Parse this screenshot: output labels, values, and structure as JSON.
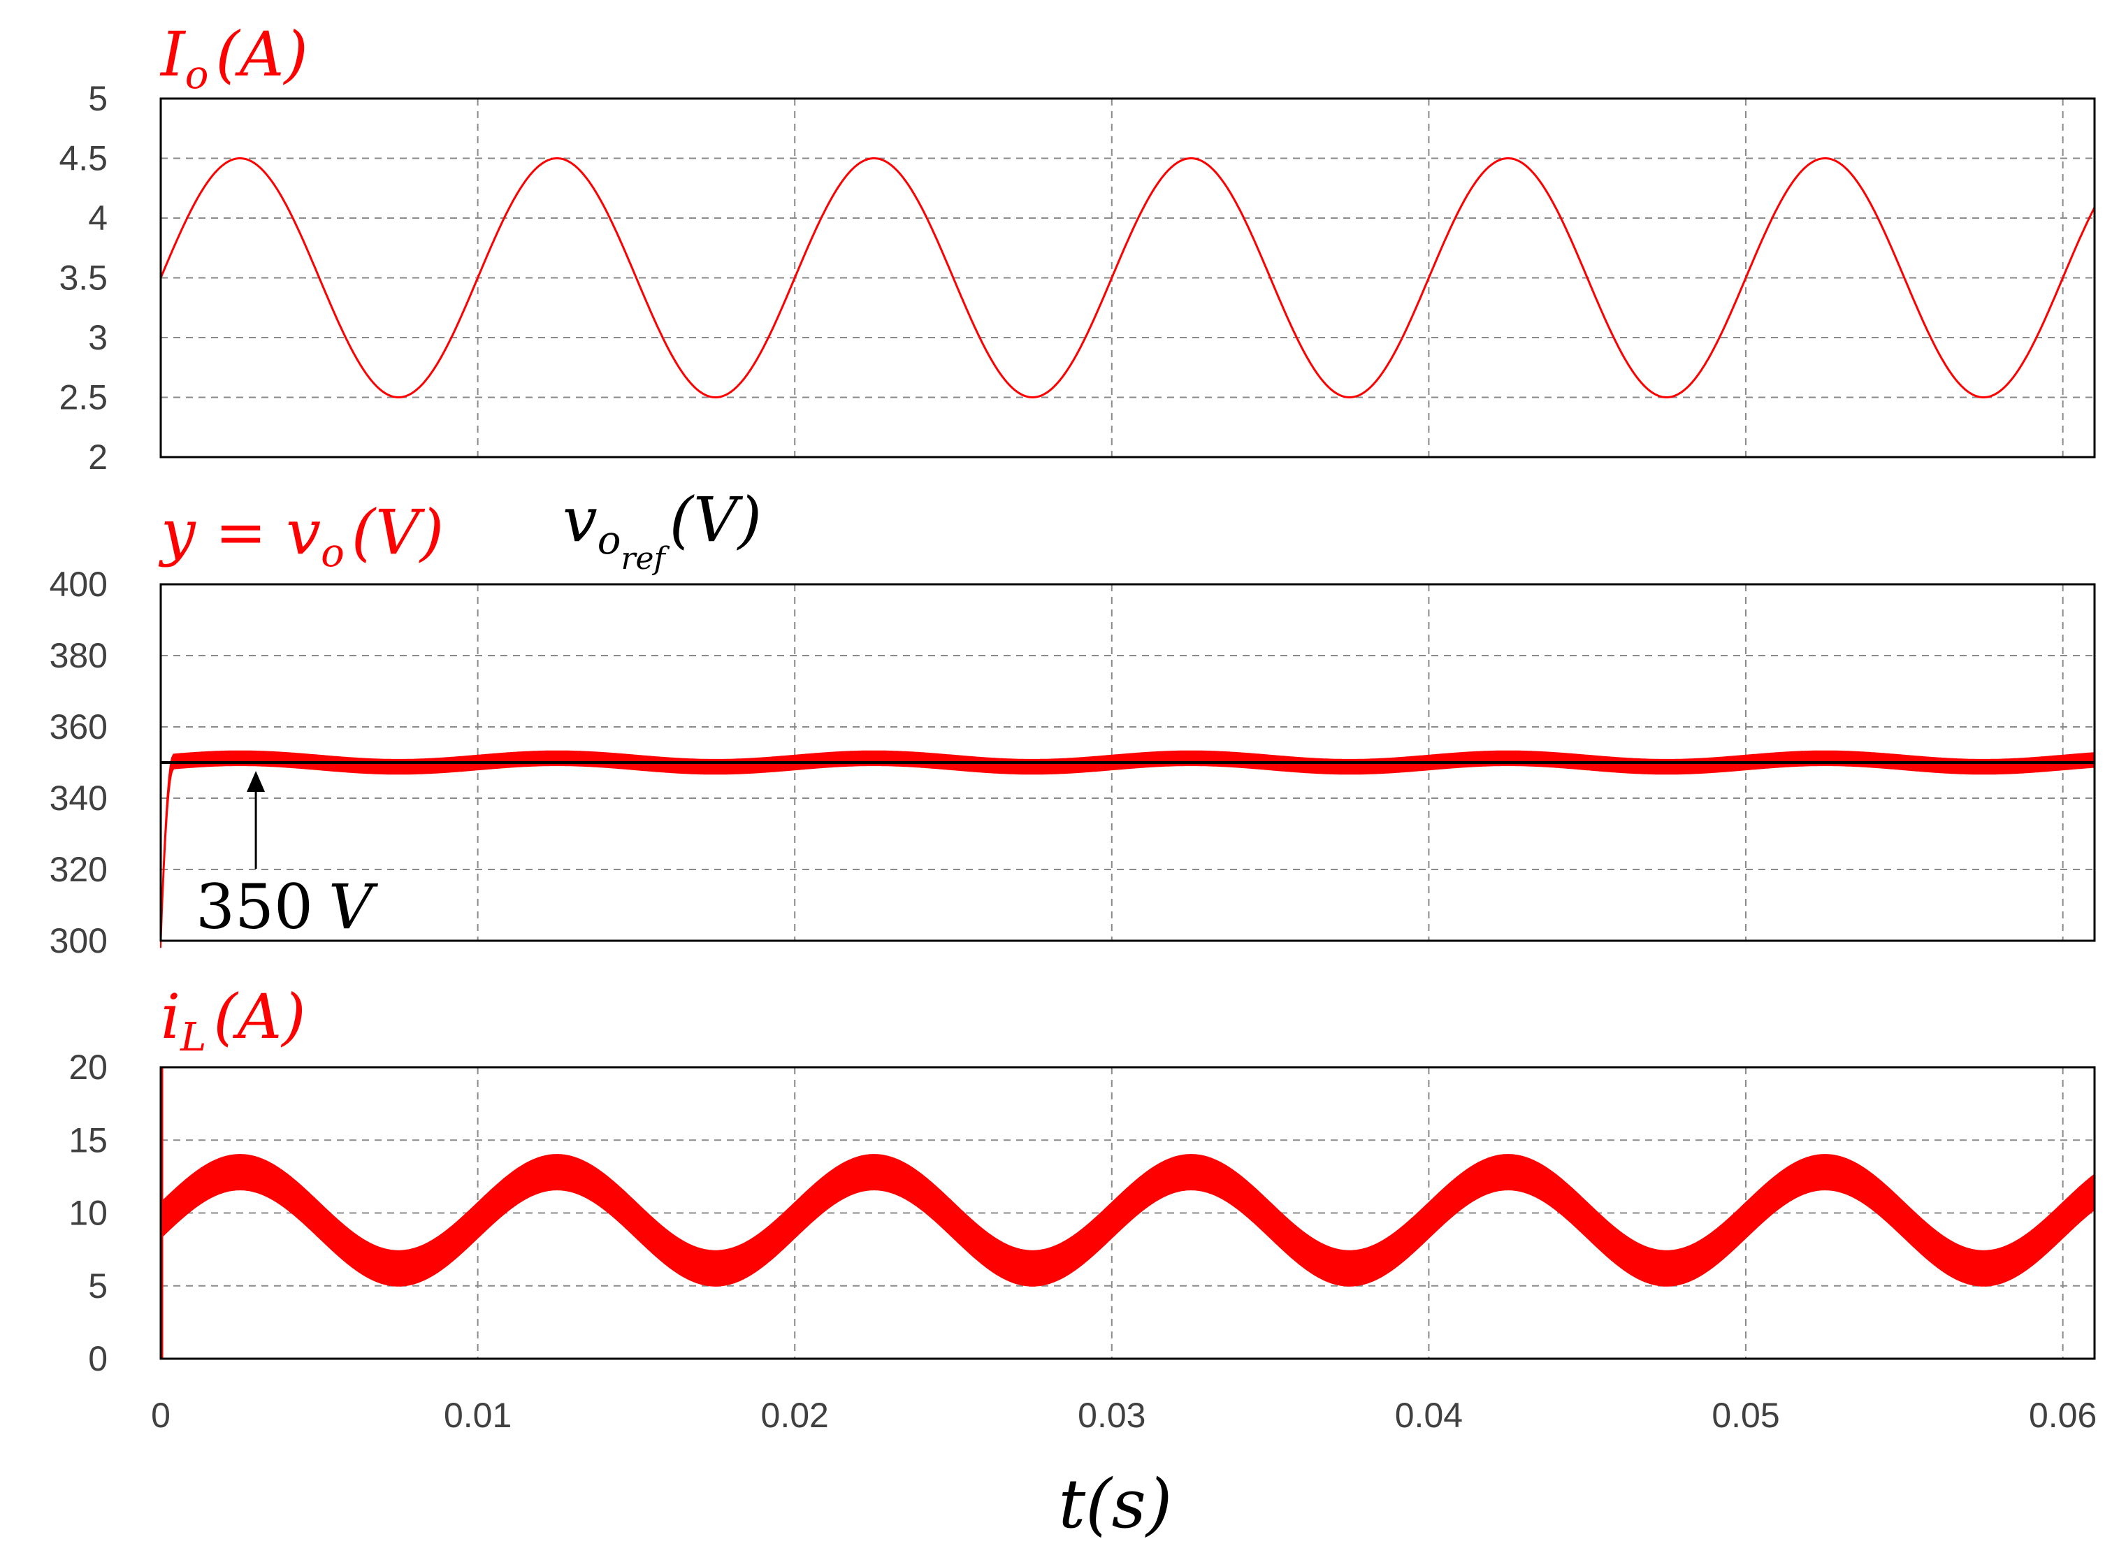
{
  "chart_data": [
    {
      "id": "io",
      "type": "line",
      "title": {
        "main": "I",
        "sub": "o",
        "unit": "(A)"
      },
      "ylim": [
        2,
        5
      ],
      "yticks": [
        "5",
        "4.5",
        "4",
        "3.5",
        "3",
        "2.5",
        "2"
      ],
      "xlim": [
        0,
        0.061
      ],
      "grid": true,
      "series": [
        {
          "name": "Io",
          "color": "#ff0000",
          "kind": "sine",
          "offset": 3.5,
          "amplitude": 1.0,
          "frequency_hz": 100,
          "phase_deg": 0,
          "band": 0
        }
      ]
    },
    {
      "id": "vo",
      "type": "line",
      "title": {
        "main": "y = v",
        "sub": "o",
        "unit": "(V)"
      },
      "ref_title": {
        "main": "v",
        "sub": "o",
        "subsub": "ref",
        "unit": "(V)"
      },
      "ylim": [
        300,
        400
      ],
      "yticks": [
        "400",
        "380",
        "360",
        "340",
        "320",
        "300"
      ],
      "xlim": [
        0,
        0.061
      ],
      "grid": true,
      "series": [
        {
          "name": "vo",
          "color": "#ff0000",
          "kind": "step",
          "start": 300,
          "final": 350,
          "rise_time_s": 0.0004,
          "ripple_amplitude": 1.2,
          "frequency_hz": 100,
          "band": 2
        },
        {
          "name": "vo_ref",
          "color": "#000000",
          "kind": "constant",
          "value": 350
        }
      ],
      "annotation": {
        "text_number": "350",
        "text_unit": "V",
        "x": 0.003,
        "y": 350
      }
    },
    {
      "id": "il",
      "type": "line",
      "title": {
        "main": "i",
        "sub": "L",
        "unit": "(A)"
      },
      "ylim": [
        0,
        20
      ],
      "yticks": [
        "20",
        "15",
        "10",
        "5",
        "0"
      ],
      "xlim": [
        0,
        0.061
      ],
      "grid": true,
      "series": [
        {
          "name": "iL",
          "color": "#ff0000",
          "kind": "sine",
          "offset": 9.5,
          "amplitude": 3.3,
          "frequency_hz": 100,
          "phase_deg": 0,
          "band": 1.2,
          "initial_spike": 20
        }
      ]
    }
  ],
  "x_axis": {
    "ticks": [
      "0",
      "0.01",
      "0.02",
      "0.03",
      "0.04",
      "0.05",
      "0.06"
    ],
    "tick_values": [
      0,
      0.01,
      0.02,
      0.03,
      0.04,
      0.05,
      0.06
    ],
    "label": "t(s)"
  },
  "colors": {
    "signal": "#ff0000",
    "reference": "#000000",
    "grid": "#8a8a8a"
  }
}
